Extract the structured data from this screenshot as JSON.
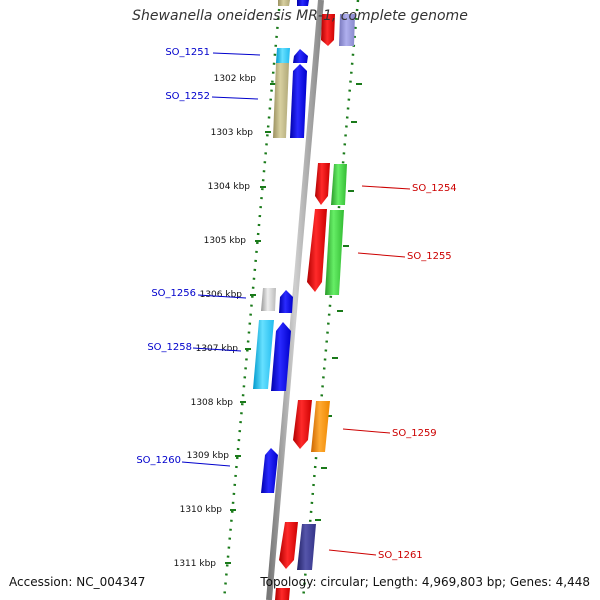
{
  "title": "Shewanella oneidensis MR-1, complete genome",
  "footer": {
    "accession": "Accession: NC_004347",
    "summary": "Topology: circular; Length: 4,969,803 bp; Genes: 4,448"
  },
  "colors": {
    "forward_label": "#0000cc",
    "reverse_label": "#cc0000",
    "ruler": "#1a7a1a",
    "backbone": "#999999"
  },
  "ruler": {
    "ticks": [
      "1302 kbp",
      "1303 kbp",
      "1304 kbp",
      "1305 kbp",
      "1306 kbp",
      "1307 kbp",
      "1308 kbp",
      "1309 kbp",
      "1310 kbp",
      "1311 kbp"
    ]
  },
  "genes": {
    "left": [
      "SO_1251",
      "SO_1252",
      "SO_1256",
      "SO_1258",
      "SO_1260"
    ],
    "right": [
      "SO_1254",
      "SO_1255",
      "SO_1259",
      "SO_1261"
    ]
  }
}
